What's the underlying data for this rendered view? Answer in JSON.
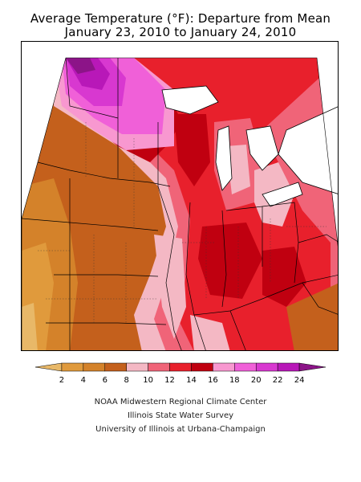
{
  "title_line1": "Average Temperature (°F): Departure from Mean",
  "title_line2": "January 23, 2010 to January 24, 2010",
  "legend": {
    "labels": [
      "2",
      "4",
      "6",
      "8",
      "10",
      "12",
      "14",
      "16",
      "18",
      "20",
      "22",
      "24"
    ],
    "colors": [
      "#e8b868",
      "#e09a3c",
      "#d4822a",
      "#c4601c",
      "#f4b8c4",
      "#f06478",
      "#e8202c",
      "#c00010",
      "#f898d0",
      "#f060d8",
      "#d838d0",
      "#b818b8",
      "#8c1488"
    ]
  },
  "credits": {
    "line1": "NOAA Midwestern Regional Climate Center",
    "line2": "Illinois State Water Survey",
    "line3": "University of Illinois at Urbana-Champaign"
  }
}
